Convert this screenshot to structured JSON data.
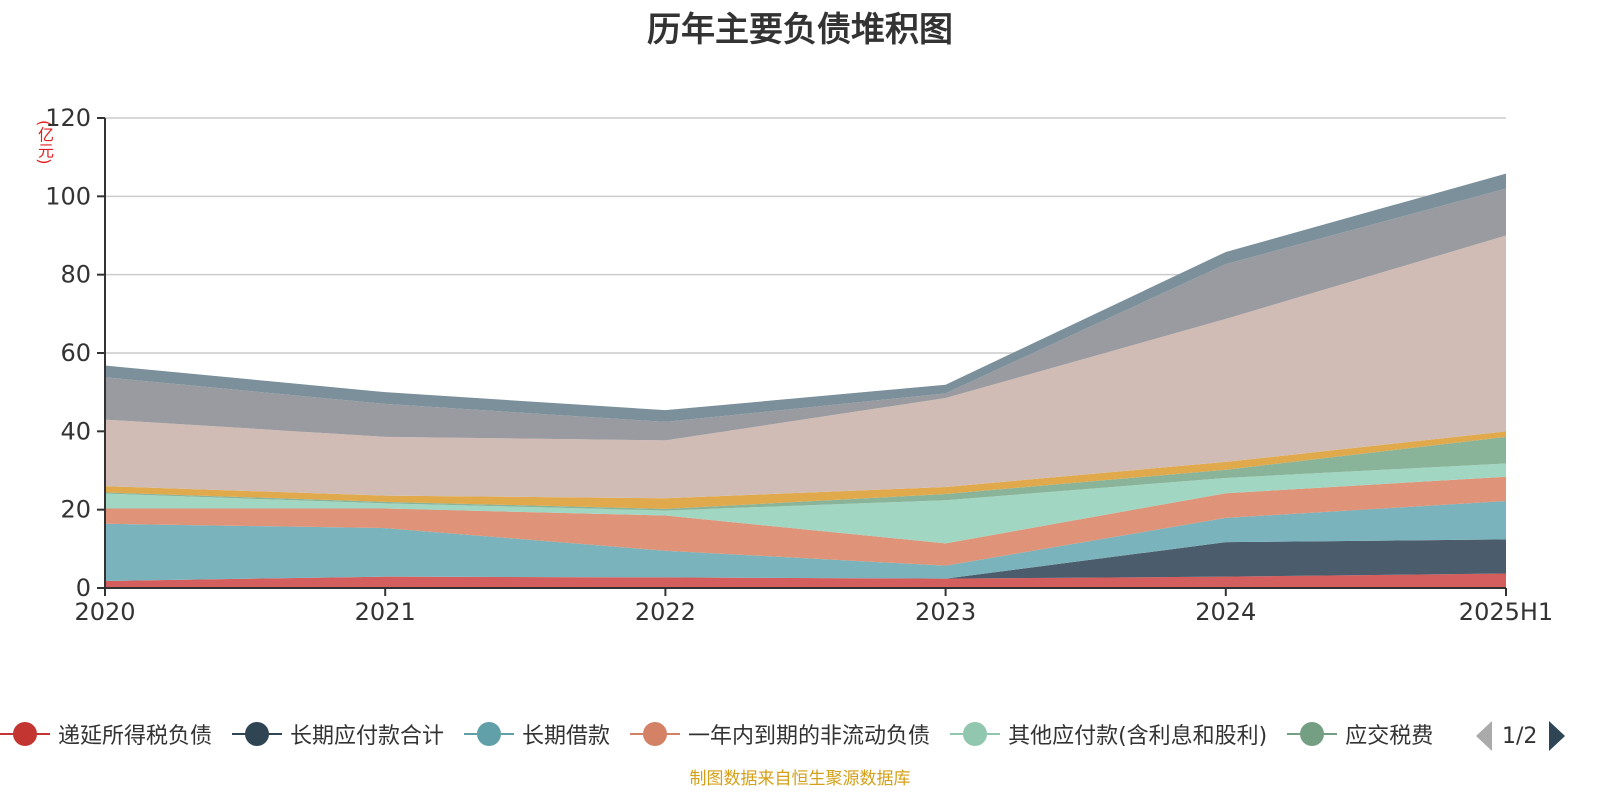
{
  "chart_data": {
    "type": "area",
    "title": "历年主要负债堆积图",
    "unit_label": "(亿元)",
    "categories": [
      "2020",
      "2021",
      "2022",
      "2023",
      "2024",
      "2025H1"
    ],
    "y_ticks": [
      "0",
      "20",
      "40",
      "60",
      "80",
      "100",
      "120"
    ],
    "ylim": [
      0,
      120
    ],
    "stacked": true,
    "grid": true,
    "series": [
      {
        "name": "递延所得税负债",
        "color": "#d45d5d",
        "values": [
          1.8,
          2.9,
          2.7,
          2.4,
          2.9,
          3.7
        ]
      },
      {
        "name": "长期应付款合计",
        "color": "#4b5d6c",
        "values": [
          0.0,
          0.0,
          0.0,
          0.0,
          8.8,
          8.7
        ]
      },
      {
        "name": "长期借款",
        "color": "#7bb3bc",
        "values": [
          14.6,
          12.4,
          6.8,
          3.3,
          6.2,
          9.8
        ]
      },
      {
        "name": "一年内到期的非流动负债",
        "color": "#df9378",
        "values": [
          3.9,
          5.0,
          9.0,
          5.7,
          6.3,
          6.2
        ]
      },
      {
        "name": "其他应付款(含利息和股利)",
        "color": "#a1d6c2",
        "values": [
          3.8,
          1.3,
          1.3,
          11.0,
          3.9,
          3.4
        ]
      },
      {
        "name": "应交税费",
        "color": "#8ab49a",
        "values": [
          0.3,
          0.4,
          0.4,
          1.6,
          2.1,
          6.8
        ]
      },
      {
        "name": "",
        "color": "#e0a94c",
        "values": [
          1.6,
          1.6,
          2.7,
          1.8,
          2.0,
          1.4
        ]
      },
      {
        "name": "",
        "color": "#d1bcb5",
        "values": [
          17.0,
          15.0,
          14.8,
          22.7,
          36.5,
          50.0
        ]
      },
      {
        "name": "",
        "color": "#999ba0",
        "values": [
          10.8,
          8.4,
          4.7,
          1.2,
          14.0,
          12.0
        ]
      },
      {
        "name": "",
        "color": "#7b909b",
        "values": [
          3.0,
          3.0,
          3.0,
          2.2,
          3.1,
          3.8
        ]
      }
    ]
  },
  "legend": {
    "items": [
      {
        "label": "递延所得税负债",
        "color": "#c23531"
      },
      {
        "label": "长期应付款合计",
        "color": "#2f4554"
      },
      {
        "label": "长期借款",
        "color": "#61a0a8"
      },
      {
        "label": "一年内到期的非流动负债",
        "color": "#d48265"
      },
      {
        "label": "其他应付款(含利息和股利)",
        "color": "#91c7ae"
      },
      {
        "label": "应交税费",
        "color": "#749f83"
      }
    ],
    "page": "1/2"
  },
  "source_note": "制图数据来自恒生聚源数据库"
}
